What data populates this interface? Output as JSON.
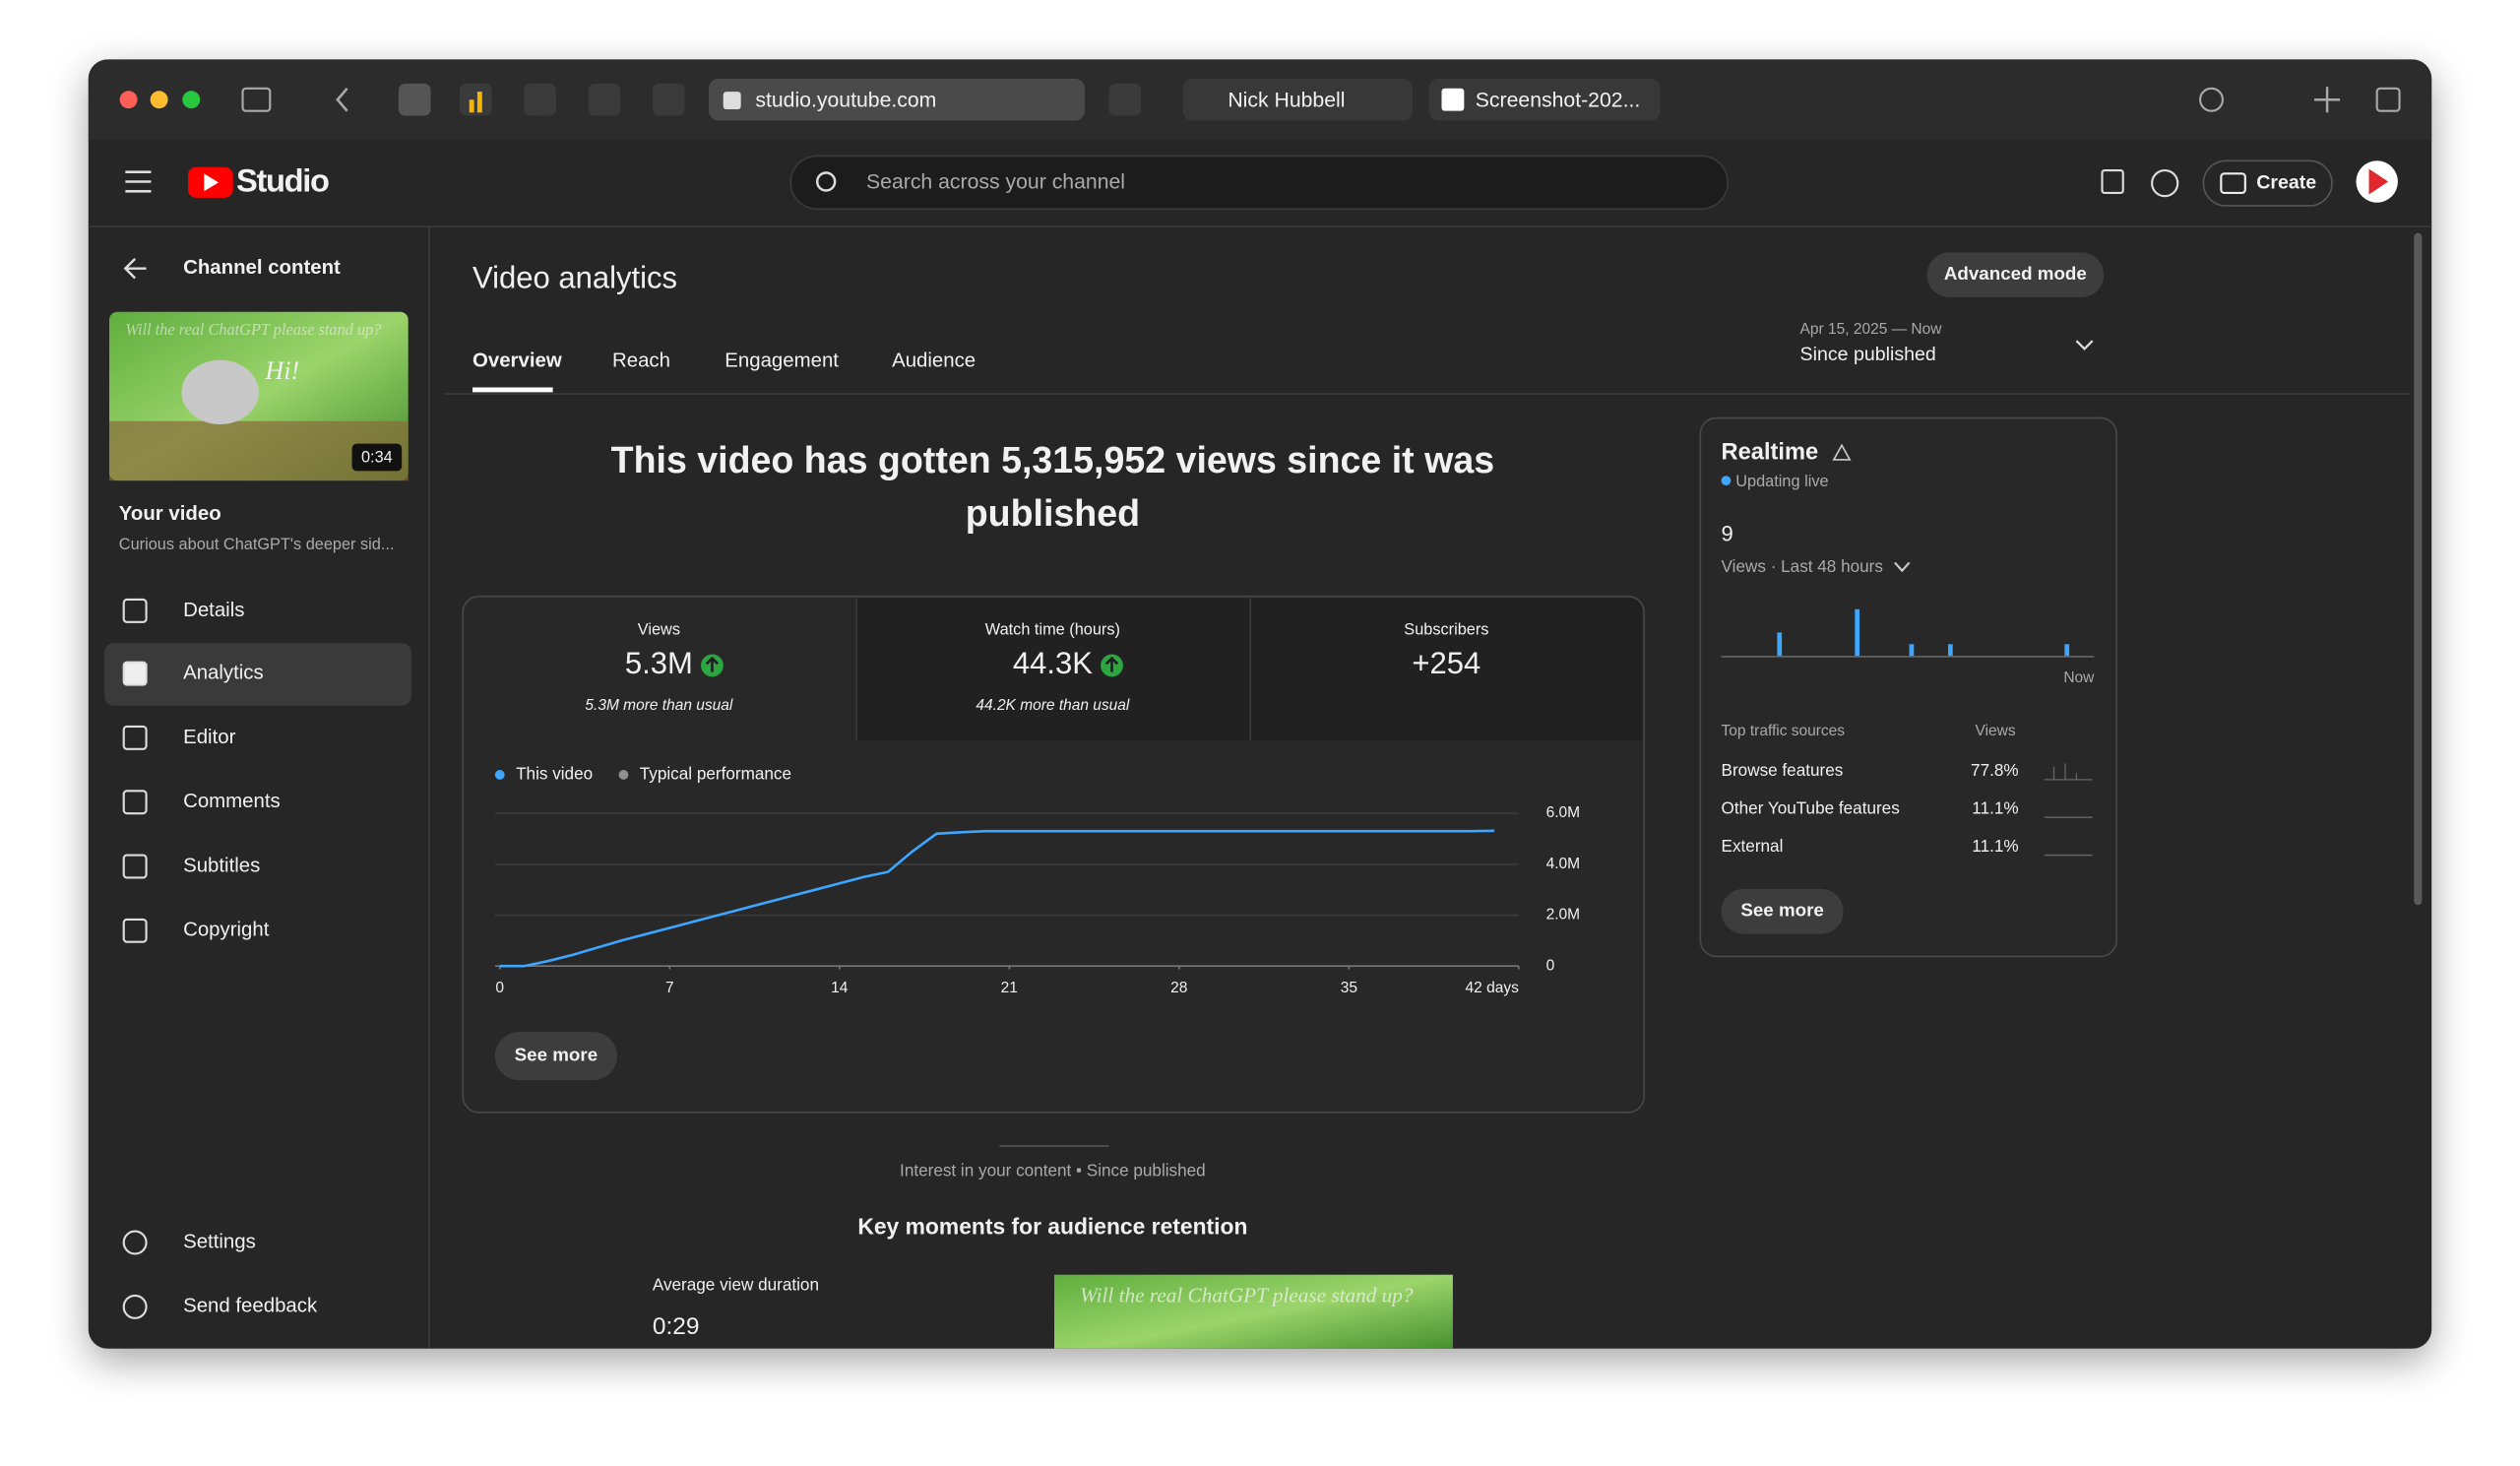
{
  "browser": {
    "tabs": [
      "studio.youtube.com",
      "Nick Hubbell",
      "Screenshot-202..."
    ]
  },
  "header": {
    "logo": "Studio",
    "search": "Search across your channel",
    "create": "Create"
  },
  "sidebar": {
    "back": "Channel content",
    "thumbnail_caption": "Will the real ChatGPT please stand up?",
    "thumbnail_greeting": "Hi!",
    "duration": "0:34",
    "your_video": "Your video",
    "video_title": "Curious about ChatGPT's deeper sid...",
    "nav": [
      "Details",
      "Analytics",
      "Editor",
      "Comments",
      "Subtitles",
      "Copyright"
    ],
    "footer_nav": [
      "Settings",
      "Send feedback"
    ]
  },
  "main": {
    "title": "Video analytics",
    "advanced": "Advanced mode",
    "tabs": [
      "Overview",
      "Reach",
      "Engagement",
      "Audience"
    ],
    "date_range": "Apr 15, 2025 — Now",
    "period": "Since published",
    "headline": "This video has gotten 5,315,952 views since it was published",
    "metrics": [
      {
        "label": "Views",
        "value": "5.3M",
        "note": "5.3M more than usual"
      },
      {
        "label": "Watch time (hours)",
        "value": "44.3K",
        "note": "44.2K more than usual"
      },
      {
        "label": "Subscribers",
        "value": "+254"
      }
    ],
    "see_more": "See more",
    "interest": "Interest in your content • Since published",
    "key_moments": "Key moments for audience retention",
    "avg_label": "Average view duration",
    "avg_value": "0:29"
  },
  "analytics_chart": {
    "type": "line",
    "x": [
      0,
      1,
      2,
      3,
      4,
      5,
      6,
      7,
      8,
      9,
      10,
      11,
      12,
      13,
      14,
      15,
      16,
      17,
      18,
      19,
      20,
      21,
      22,
      23,
      24,
      25,
      26,
      27,
      28,
      29,
      30,
      31,
      32,
      33,
      34,
      35,
      36,
      37,
      38,
      39,
      40,
      41
    ],
    "series": [
      {
        "name": "This video",
        "color": "#3ea6ff",
        "values": [
          0,
          0,
          200000,
          440000,
          720000,
          1000000,
          1250000,
          1500000,
          1750000,
          2000000,
          2250000,
          2500000,
          2750000,
          3000000,
          3250000,
          3500000,
          3700000,
          4500000,
          5200000,
          5260000,
          5300000,
          5300000,
          5300000,
          5300000,
          5300000,
          5300000,
          5300000,
          5300000,
          5300000,
          5300000,
          5300000,
          5300000,
          5300000,
          5300000,
          5300000,
          5300000,
          5300000,
          5300000,
          5300000,
          5300000,
          5300000,
          5315952
        ]
      },
      {
        "name": "Typical performance",
        "color": "#909090",
        "values": [
          null,
          null,
          null,
          null,
          null,
          null,
          null,
          null,
          null,
          null,
          null,
          null,
          null,
          null,
          null,
          null,
          null,
          null,
          null,
          null,
          null,
          null,
          null,
          null,
          null,
          null,
          null,
          null,
          null,
          null,
          null,
          null,
          null,
          null,
          null,
          null,
          null,
          null,
          null,
          null,
          null,
          null
        ]
      }
    ],
    "xlim": [
      0,
      42
    ],
    "xticks": [
      0,
      7,
      14,
      21,
      28,
      35,
      {
        "value": 42,
        "label": "42 days"
      }
    ],
    "ylim": [
      0,
      6000000
    ],
    "yticks": [
      0,
      {
        "value": 2000000,
        "label": "2.0M"
      },
      {
        "value": 4000000,
        "label": "4.0M"
      },
      {
        "value": 6000000,
        "label": "6.0M"
      }
    ],
    "grid": true
  },
  "realtime": {
    "title": "Realtime",
    "status": "Updating live",
    "total": "9",
    "period": "Views · Last 48 hours",
    "color": "#3ea6ff",
    "hourly_views": [
      0,
      0,
      0,
      0,
      0,
      0,
      0,
      2,
      0,
      0,
      0,
      0,
      0,
      0,
      0,
      0,
      0,
      4,
      0,
      0,
      0,
      0,
      0,
      0,
      1,
      0,
      0,
      0,
      0,
      1,
      0,
      0,
      0,
      0,
      0,
      0,
      0,
      0,
      0,
      0,
      0,
      0,
      0,
      0,
      1,
      0,
      0,
      0
    ],
    "now": "Now",
    "sources_title": "Top traffic sources",
    "views_header": "Views",
    "sources": [
      [
        "Browse features",
        "77.8%"
      ],
      [
        "Other YouTube features",
        "11.1%"
      ],
      [
        "External",
        "11.1%"
      ]
    ],
    "see_more": "See more"
  }
}
